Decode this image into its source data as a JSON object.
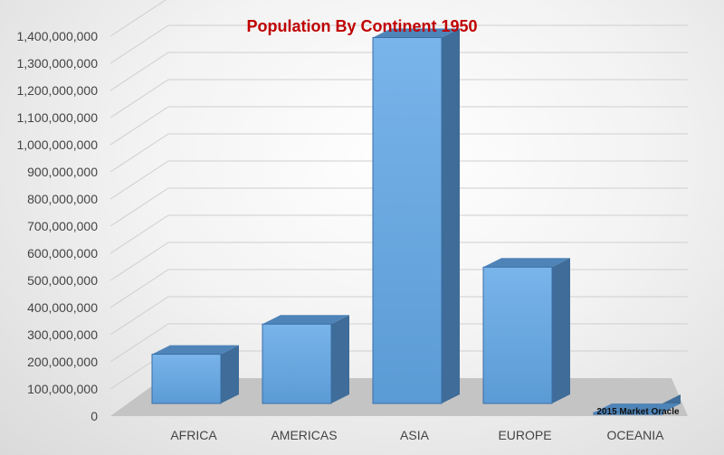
{
  "chart_data": {
    "type": "bar",
    "title": "Population By Continent 1950",
    "categories": [
      "AFRICA",
      "AMERICAS",
      "ASIA",
      "EUROPE",
      "OCEANIA"
    ],
    "values": [
      228000000,
      339000000,
      1395000000,
      549000000,
      12800000
    ],
    "ylim": [
      0,
      1400000000
    ],
    "yticks": [
      "0",
      "100,000,000",
      "200,000,000",
      "300,000,000",
      "400,000,000",
      "500,000,000",
      "600,000,000",
      "700,000,000",
      "800,000,000",
      "900,000,000",
      "1,000,000,000",
      "1,100,000,000",
      "1,200,000,000",
      "1,300,000,000",
      "1,400,000,000"
    ],
    "xlabel": "",
    "ylabel": "",
    "grid": true,
    "style": "3d-column",
    "watermark": "2015 Market Oracle"
  },
  "colors": {
    "title": "#c00000",
    "bar_front_top": "#79b4ea",
    "bar_front_bottom": "#5b9bd5",
    "bar_top": "#4f84b8",
    "bar_side": "#3f6c98",
    "bar_edge": "#3a6ea5",
    "grid": "#cfcfcf",
    "floor": "#c4c4c4"
  }
}
